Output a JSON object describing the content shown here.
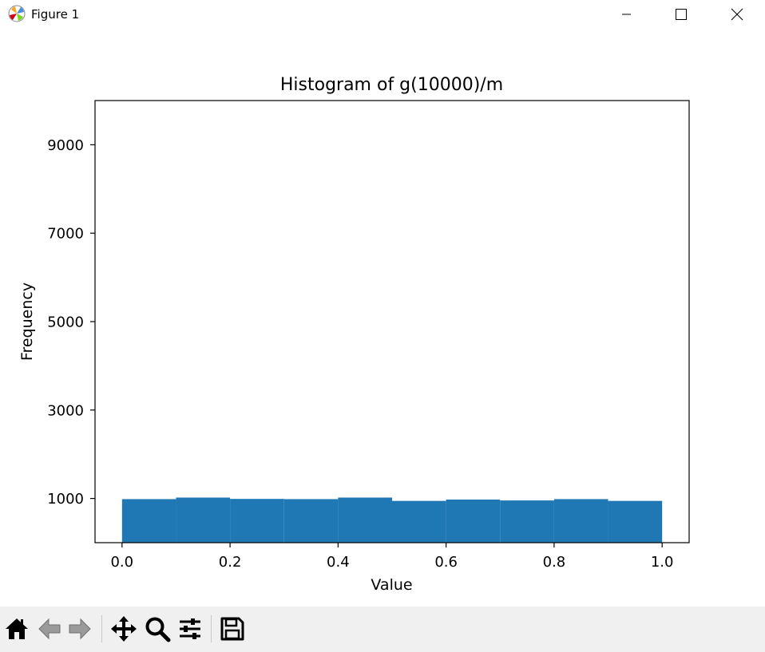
{
  "window": {
    "title": "Figure 1",
    "icons": {
      "app": "matplotlib-logo-icon",
      "minimize": "minimize-icon",
      "maximize": "maximize-icon",
      "close": "close-icon"
    }
  },
  "toolbar": {
    "buttons": [
      {
        "name": "home-button",
        "icon": "home-icon"
      },
      {
        "name": "back-button",
        "icon": "back-arrow-icon"
      },
      {
        "name": "forward-button",
        "icon": "forward-arrow-icon"
      },
      {
        "name": "pan-button",
        "icon": "pan-arrows-icon"
      },
      {
        "name": "zoom-button",
        "icon": "magnifier-icon"
      },
      {
        "name": "configure-subplots-button",
        "icon": "sliders-icon"
      },
      {
        "name": "save-button",
        "icon": "floppy-disk-icon"
      }
    ]
  },
  "chart_data": {
    "type": "bar",
    "title": "Histogram of g(10000)/m",
    "xlabel": "Value",
    "ylabel": "Frequency",
    "bin_edges": [
      0.0,
      0.1,
      0.2,
      0.3,
      0.4,
      0.5,
      0.6,
      0.7,
      0.8,
      0.9,
      1.0
    ],
    "values": [
      985,
      1020,
      990,
      985,
      1020,
      945,
      975,
      955,
      985,
      945
    ],
    "xlim": [
      -0.05,
      1.05
    ],
    "ylim": [
      0,
      10000
    ],
    "xticks": [
      "0.0",
      "0.2",
      "0.4",
      "0.6",
      "0.8",
      "1.0"
    ],
    "yticks": [
      "1000",
      "3000",
      "5000",
      "7000",
      "9000"
    ],
    "bar_color": "#1f77b4",
    "grid": false,
    "legend": "none"
  }
}
